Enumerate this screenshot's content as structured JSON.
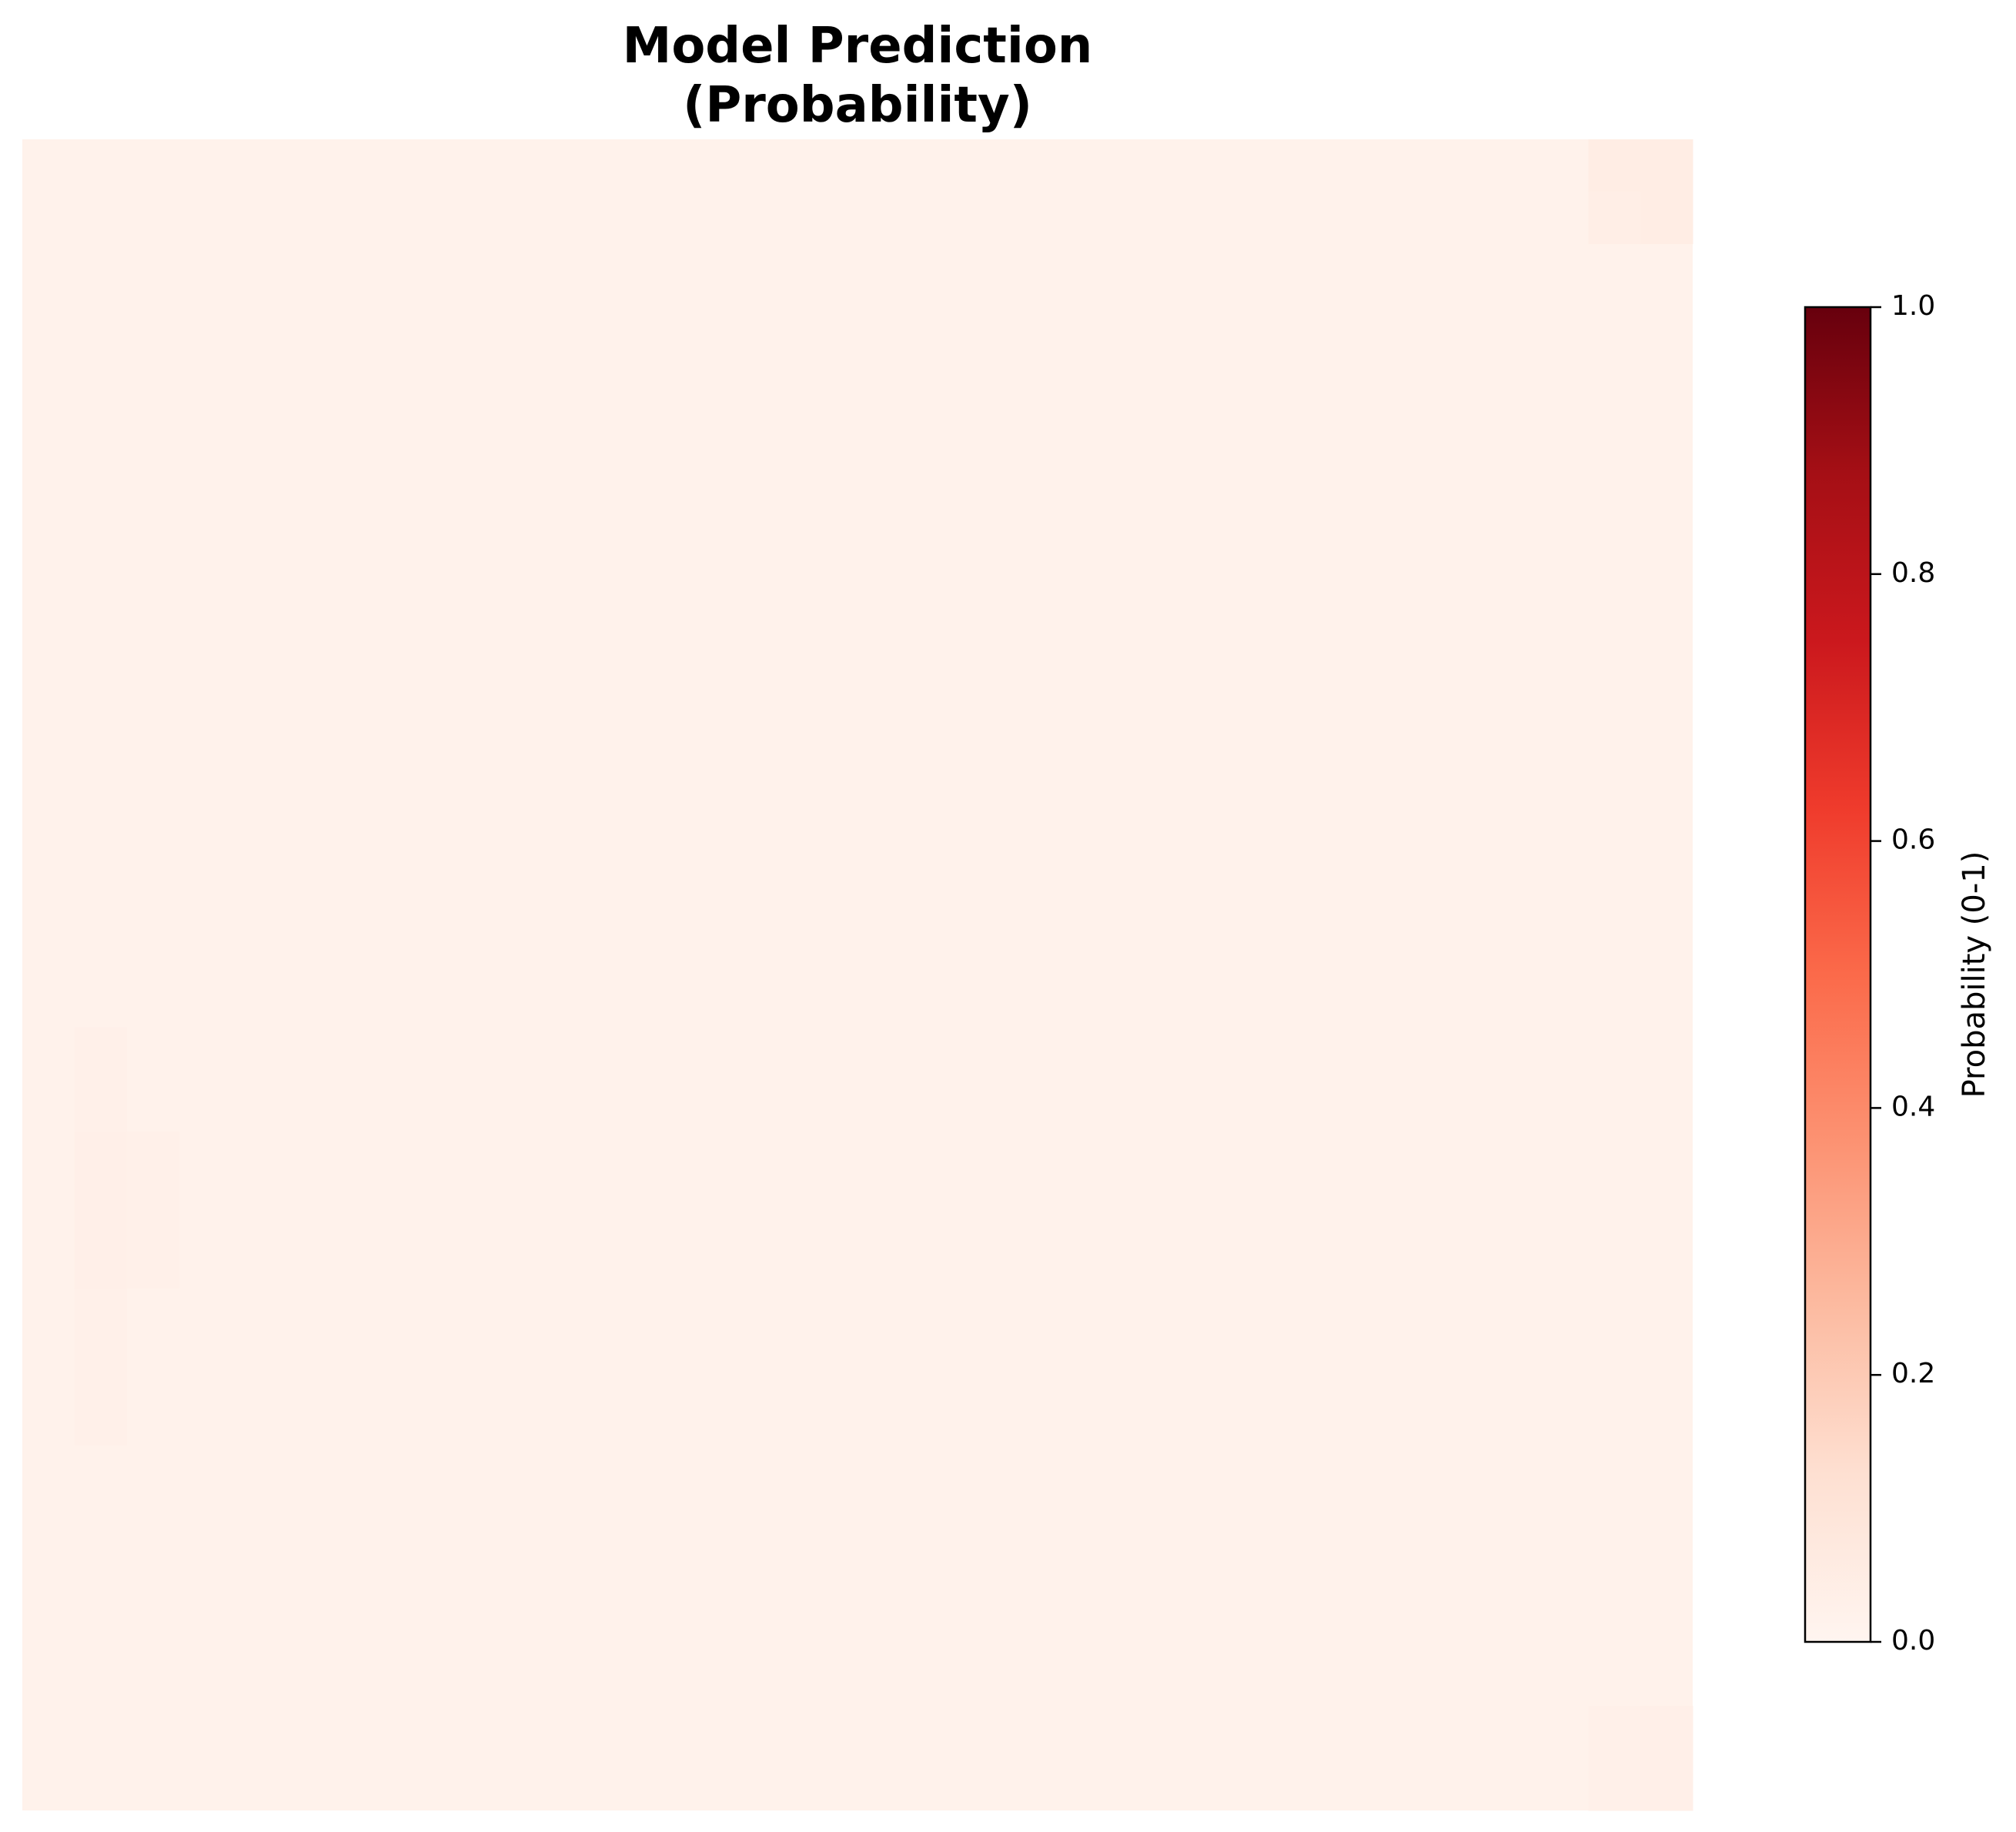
{
  "chart_data": {
    "type": "heatmap",
    "title_lines": [
      "Model Prediction",
      "(Probability)"
    ],
    "xlabel": "",
    "ylabel": "",
    "axes_visible": false,
    "grid": false,
    "grid_size": [
      32,
      32
    ],
    "base_value": 0.02,
    "cells": [
      {
        "row": 0,
        "col": 30,
        "value": 0.05
      },
      {
        "row": 0,
        "col": 31,
        "value": 0.05
      },
      {
        "row": 1,
        "col": 30,
        "value": 0.04
      },
      {
        "row": 1,
        "col": 31,
        "value": 0.05
      },
      {
        "row": 17,
        "col": 1,
        "value": 0.03
      },
      {
        "row": 18,
        "col": 1,
        "value": 0.03
      },
      {
        "row": 19,
        "col": 1,
        "value": 0.035
      },
      {
        "row": 19,
        "col": 2,
        "value": 0.03
      },
      {
        "row": 20,
        "col": 1,
        "value": 0.035
      },
      {
        "row": 20,
        "col": 2,
        "value": 0.03
      },
      {
        "row": 21,
        "col": 1,
        "value": 0.035
      },
      {
        "row": 21,
        "col": 2,
        "value": 0.03
      },
      {
        "row": 22,
        "col": 1,
        "value": 0.03
      },
      {
        "row": 23,
        "col": 1,
        "value": 0.03
      },
      {
        "row": 24,
        "col": 1,
        "value": 0.03
      },
      {
        "row": 30,
        "col": 30,
        "value": 0.03
      },
      {
        "row": 30,
        "col": 31,
        "value": 0.035
      },
      {
        "row": 31,
        "col": 30,
        "value": 0.03
      },
      {
        "row": 31,
        "col": 31,
        "value": 0.035
      }
    ],
    "colorbar": {
      "label": "Probability (0-1)",
      "range": [
        0.0,
        1.0
      ],
      "ticks": [
        0.0,
        0.2,
        0.4,
        0.6,
        0.8,
        1.0
      ],
      "tick_labels": [
        "0.0",
        "0.2",
        "0.4",
        "0.6",
        "0.8",
        "1.0"
      ],
      "colormap": "Reds",
      "colormap_stops": [
        "#fff5f0",
        "#fee0d2",
        "#fcbba1",
        "#fc9272",
        "#fb6a4a",
        "#ef3b2c",
        "#cb181d",
        "#a50f15",
        "#67000d"
      ]
    }
  }
}
